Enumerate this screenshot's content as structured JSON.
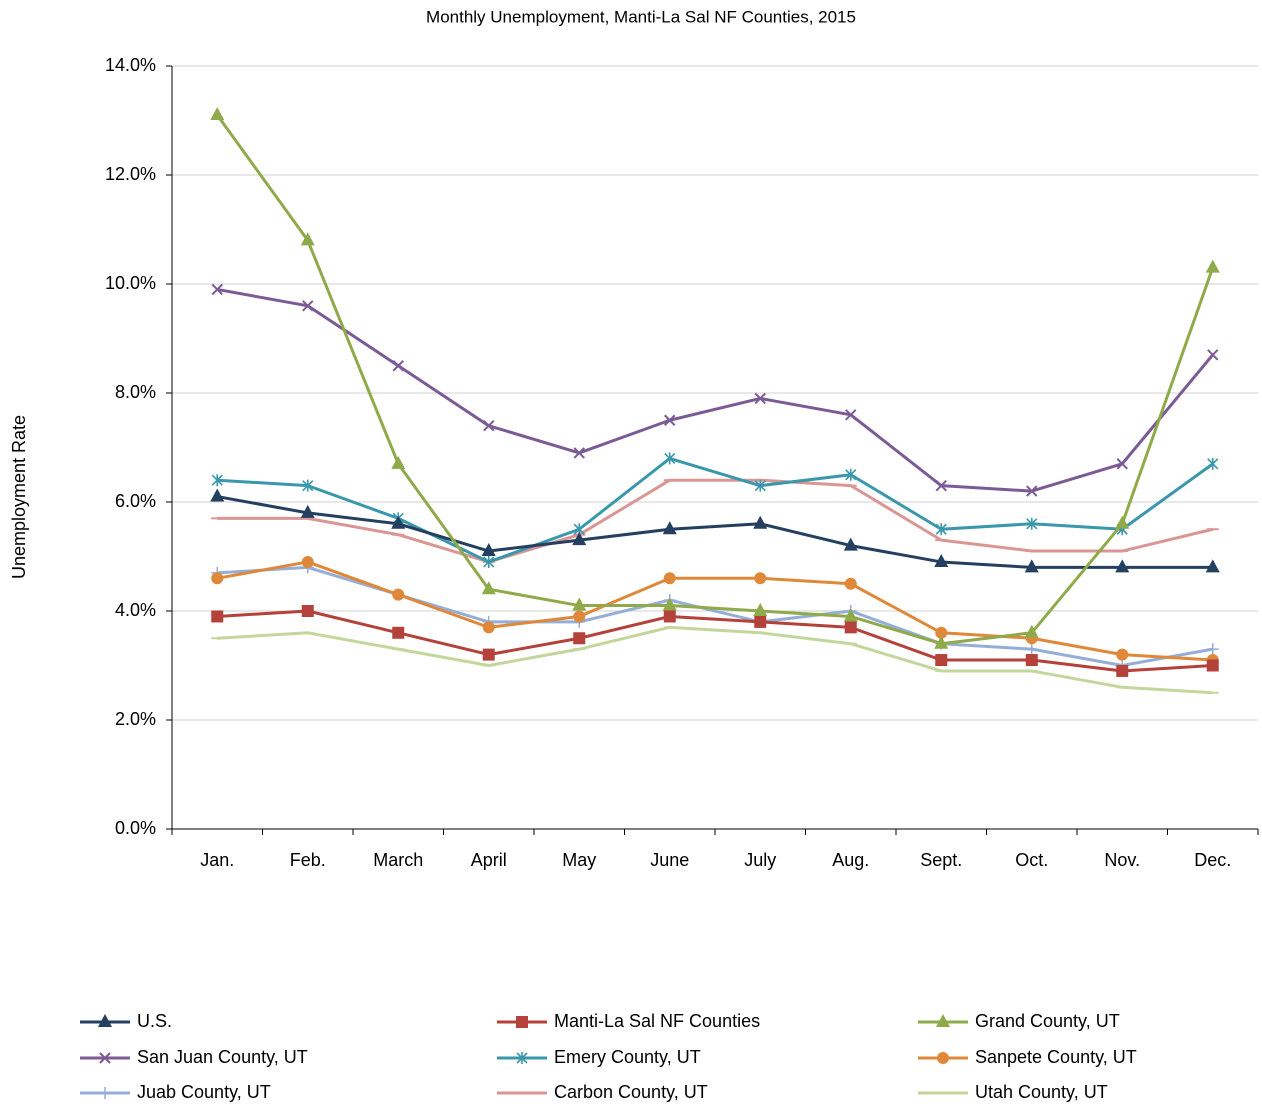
{
  "chart_data": {
    "type": "line",
    "title": "Monthly Unemployment, Manti-La Sal NF Counties, 2015",
    "y_label": "Unemployment Rate",
    "categories": [
      "Jan.",
      "Feb.",
      "March",
      "April",
      "May",
      "June",
      "July",
      "Aug.",
      "Sept.",
      "Oct.",
      "Nov.",
      "Dec."
    ],
    "ylim": [
      0,
      14
    ],
    "yticks": [
      {
        "value": 0,
        "label": "0.0%"
      },
      {
        "value": 2,
        "label": "2.0%"
      },
      {
        "value": 4,
        "label": "4.0%"
      },
      {
        "value": 6,
        "label": "6.0%"
      },
      {
        "value": 8,
        "label": "8.0%"
      },
      {
        "value": 10,
        "label": "10.0%"
      },
      {
        "value": 12,
        "label": "12.0%"
      },
      {
        "value": 14,
        "label": "14.0%"
      }
    ],
    "grid": true,
    "legend": "bottom",
    "series": [
      {
        "name": "U.S.",
        "color": "#243f60",
        "marker": "triangle",
        "values": [
          6.1,
          5.8,
          5.6,
          5.1,
          5.3,
          5.5,
          5.6,
          5.2,
          4.9,
          4.8,
          4.8,
          4.8
        ]
      },
      {
        "name": "Manti-La Sal NF Counties",
        "color": "#b5413b",
        "marker": "square",
        "values": [
          3.9,
          4.0,
          3.6,
          3.2,
          3.5,
          3.9,
          3.8,
          3.7,
          3.1,
          3.1,
          2.9,
          3.0
        ]
      },
      {
        "name": "Grand County, UT",
        "color": "#8faa4a",
        "marker": "triangle",
        "values": [
          13.1,
          10.8,
          6.7,
          4.4,
          4.1,
          4.1,
          4.0,
          3.9,
          3.4,
          3.6,
          5.6,
          10.3
        ]
      },
      {
        "name": "San Juan County, UT",
        "color": "#7b5a96",
        "marker": "x",
        "values": [
          9.9,
          9.6,
          8.5,
          7.4,
          6.9,
          7.5,
          7.9,
          7.6,
          6.3,
          6.2,
          6.7,
          8.7
        ]
      },
      {
        "name": "Emery County, UT",
        "color": "#3a97ac",
        "marker": "star",
        "values": [
          6.4,
          6.3,
          5.7,
          4.9,
          5.5,
          6.8,
          6.3,
          6.5,
          5.5,
          5.6,
          5.5,
          6.7
        ]
      },
      {
        "name": "Sanpete County, UT",
        "color": "#e0883a",
        "marker": "circle",
        "values": [
          4.6,
          4.9,
          4.3,
          3.7,
          3.9,
          4.6,
          4.6,
          4.5,
          3.6,
          3.5,
          3.2,
          3.1
        ]
      },
      {
        "name": "Juab County, UT",
        "color": "#95aed8",
        "marker": "plus",
        "values": [
          4.7,
          4.8,
          4.3,
          3.8,
          3.8,
          4.2,
          3.8,
          4.0,
          3.4,
          3.3,
          3.0,
          3.3
        ]
      },
      {
        "name": "Carbon County, UT",
        "color": "#d99694",
        "marker": "dash",
        "values": [
          5.7,
          5.7,
          5.4,
          4.9,
          5.4,
          6.4,
          6.4,
          6.3,
          5.3,
          5.1,
          5.1,
          5.5
        ]
      },
      {
        "name": "Utah County, UT",
        "color": "#c3d69b",
        "marker": "dash",
        "values": [
          3.5,
          3.6,
          3.3,
          3.0,
          3.3,
          3.7,
          3.6,
          3.4,
          2.9,
          2.9,
          2.6,
          2.5
        ]
      }
    ]
  }
}
